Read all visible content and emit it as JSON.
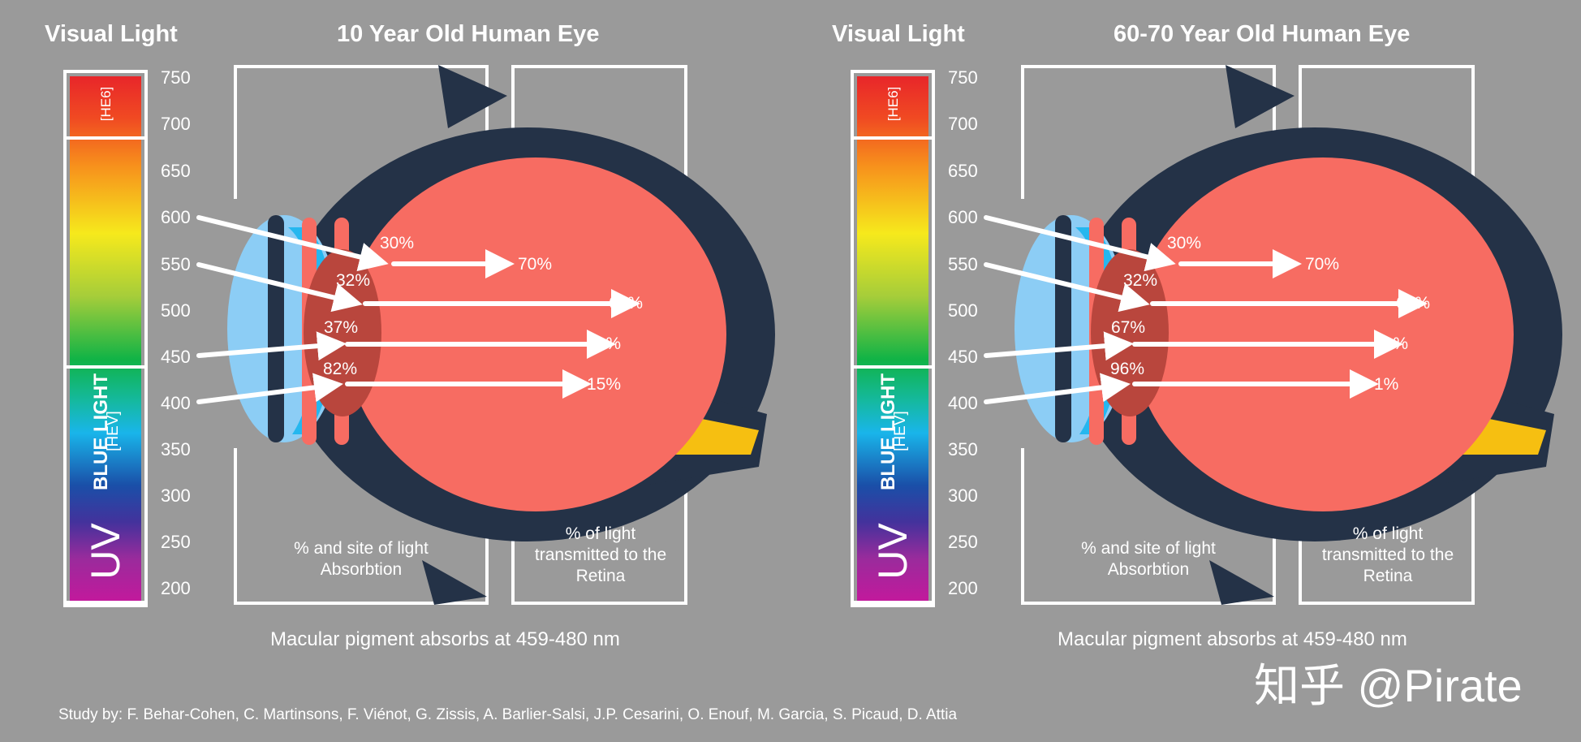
{
  "panels": [
    {
      "visual_light": "Visual Light",
      "title": "10 Year Old Human Eye",
      "absorption": [
        "30%",
        "32%",
        "37%",
        "82%"
      ],
      "transmitted": [
        "70%",
        "65%",
        "60%",
        "15%"
      ],
      "caption_absorption": [
        "% and site of light",
        "Absorbtion"
      ],
      "caption_transmitted": [
        "% of light",
        "transmitted to the",
        "Retina"
      ],
      "macular": "Macular pigment absorbs at 459-480 nm"
    },
    {
      "visual_light": "Visual Light",
      "title": "60-70 Year Old Human Eye",
      "absorption": [
        "30%",
        "32%",
        "67%",
        "96%"
      ],
      "transmitted": [
        "70%",
        "65%",
        "40%",
        "1%"
      ],
      "caption_absorption": [
        "% and site of light",
        "Absorbtion"
      ],
      "caption_transmitted": [
        "% of light",
        "transmitted to the",
        "Retina"
      ],
      "macular": "Macular pigment absorbs at 459-480 nm"
    }
  ],
  "scale_ticks": [
    "750",
    "700",
    "650",
    "600",
    "550",
    "500",
    "450",
    "400",
    "350",
    "300",
    "250",
    "200"
  ],
  "spectrum_labels": {
    "hev_top": "[HE6]",
    "blue_light": "BLUE LIGHT",
    "hev": "[HEV]",
    "uv": "UV"
  },
  "study": "Study by: F. Behar-Cohen, C. Martinsons, F. Viénot, G. Zissis, A. Barlier-Salsi, J.P. Cesarini, O. Enouf, M. Garcia, S. Picaud, D. Attia",
  "watermark": "知乎 @Pirate",
  "colors": {
    "background": "#9a9a9a",
    "eye_outline": "#243247",
    "eye_body": "#f76c62",
    "lens": "#b9463d",
    "cornea": "#8ccdf5",
    "iris": "#25b7ef",
    "optic_nerve": "#f6bf11"
  }
}
